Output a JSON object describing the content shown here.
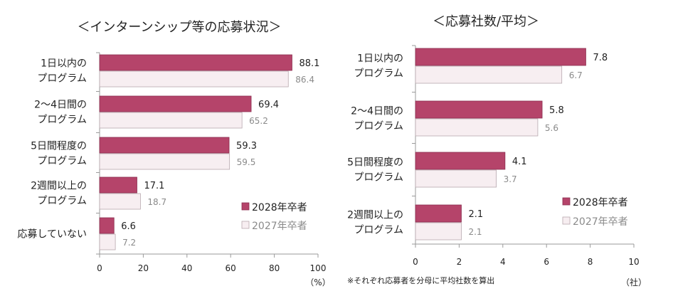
{
  "chart_data": [
    {
      "type": "bar",
      "orientation": "horizontal",
      "title": "＜インターンシップ等の応募状況＞",
      "categories": [
        [
          "1日以内の",
          "プログラム"
        ],
        [
          "2～4日間の",
          "プログラム"
        ],
        [
          "5日間程度の",
          "プログラム"
        ],
        [
          "2週間以上の",
          "プログラム"
        ],
        [
          "応募していない"
        ]
      ],
      "series": [
        {
          "name": "2028年卒者",
          "values": [
            88.1,
            69.4,
            59.3,
            17.1,
            6.6
          ],
          "labels": [
            "88.1",
            "69.4",
            "59.3",
            "17.1",
            "6.6"
          ]
        },
        {
          "name": "2027年卒者",
          "values": [
            86.4,
            65.2,
            59.5,
            18.7,
            7.2
          ],
          "labels": [
            "86.4",
            "65.2",
            "59.5",
            "18.7",
            "7.2"
          ]
        }
      ],
      "xlim": [
        0,
        100
      ],
      "xticks": [
        "0",
        "20",
        "40",
        "60",
        "80",
        "100"
      ],
      "unit": "（%）",
      "legend_position": "bottom-right",
      "grid": false
    },
    {
      "type": "bar",
      "orientation": "horizontal",
      "title": "＜応募社数/平均＞",
      "categories": [
        [
          "1日以内の",
          "プログラム"
        ],
        [
          "2～4日間の",
          "プログラム"
        ],
        [
          "5日間程度の",
          "プログラム"
        ],
        [
          "2週間以上の",
          "プログラム"
        ]
      ],
      "series": [
        {
          "name": "2028年卒者",
          "values": [
            7.8,
            5.8,
            4.1,
            2.1
          ],
          "labels": [
            "7.8",
            "5.8",
            "4.1",
            "2.1"
          ]
        },
        {
          "name": "2027年卒者",
          "values": [
            6.7,
            5.6,
            3.7,
            2.1
          ],
          "labels": [
            "6.7",
            "5.6",
            "3.7",
            "2.1"
          ]
        }
      ],
      "xlim": [
        0,
        10
      ],
      "xticks": [
        "0",
        "2",
        "4",
        "6",
        "8",
        "10"
      ],
      "unit": "（社）",
      "note": "※それぞれ応募者を分母に平均社数を算出",
      "legend_position": "bottom-right",
      "grid": false
    }
  ],
  "colors": {
    "series_2028": "#b5446a",
    "series_2028_border": "#8c2f50",
    "series_2027": "#f7eef1",
    "series_2027_border": "#b8a8ae"
  }
}
